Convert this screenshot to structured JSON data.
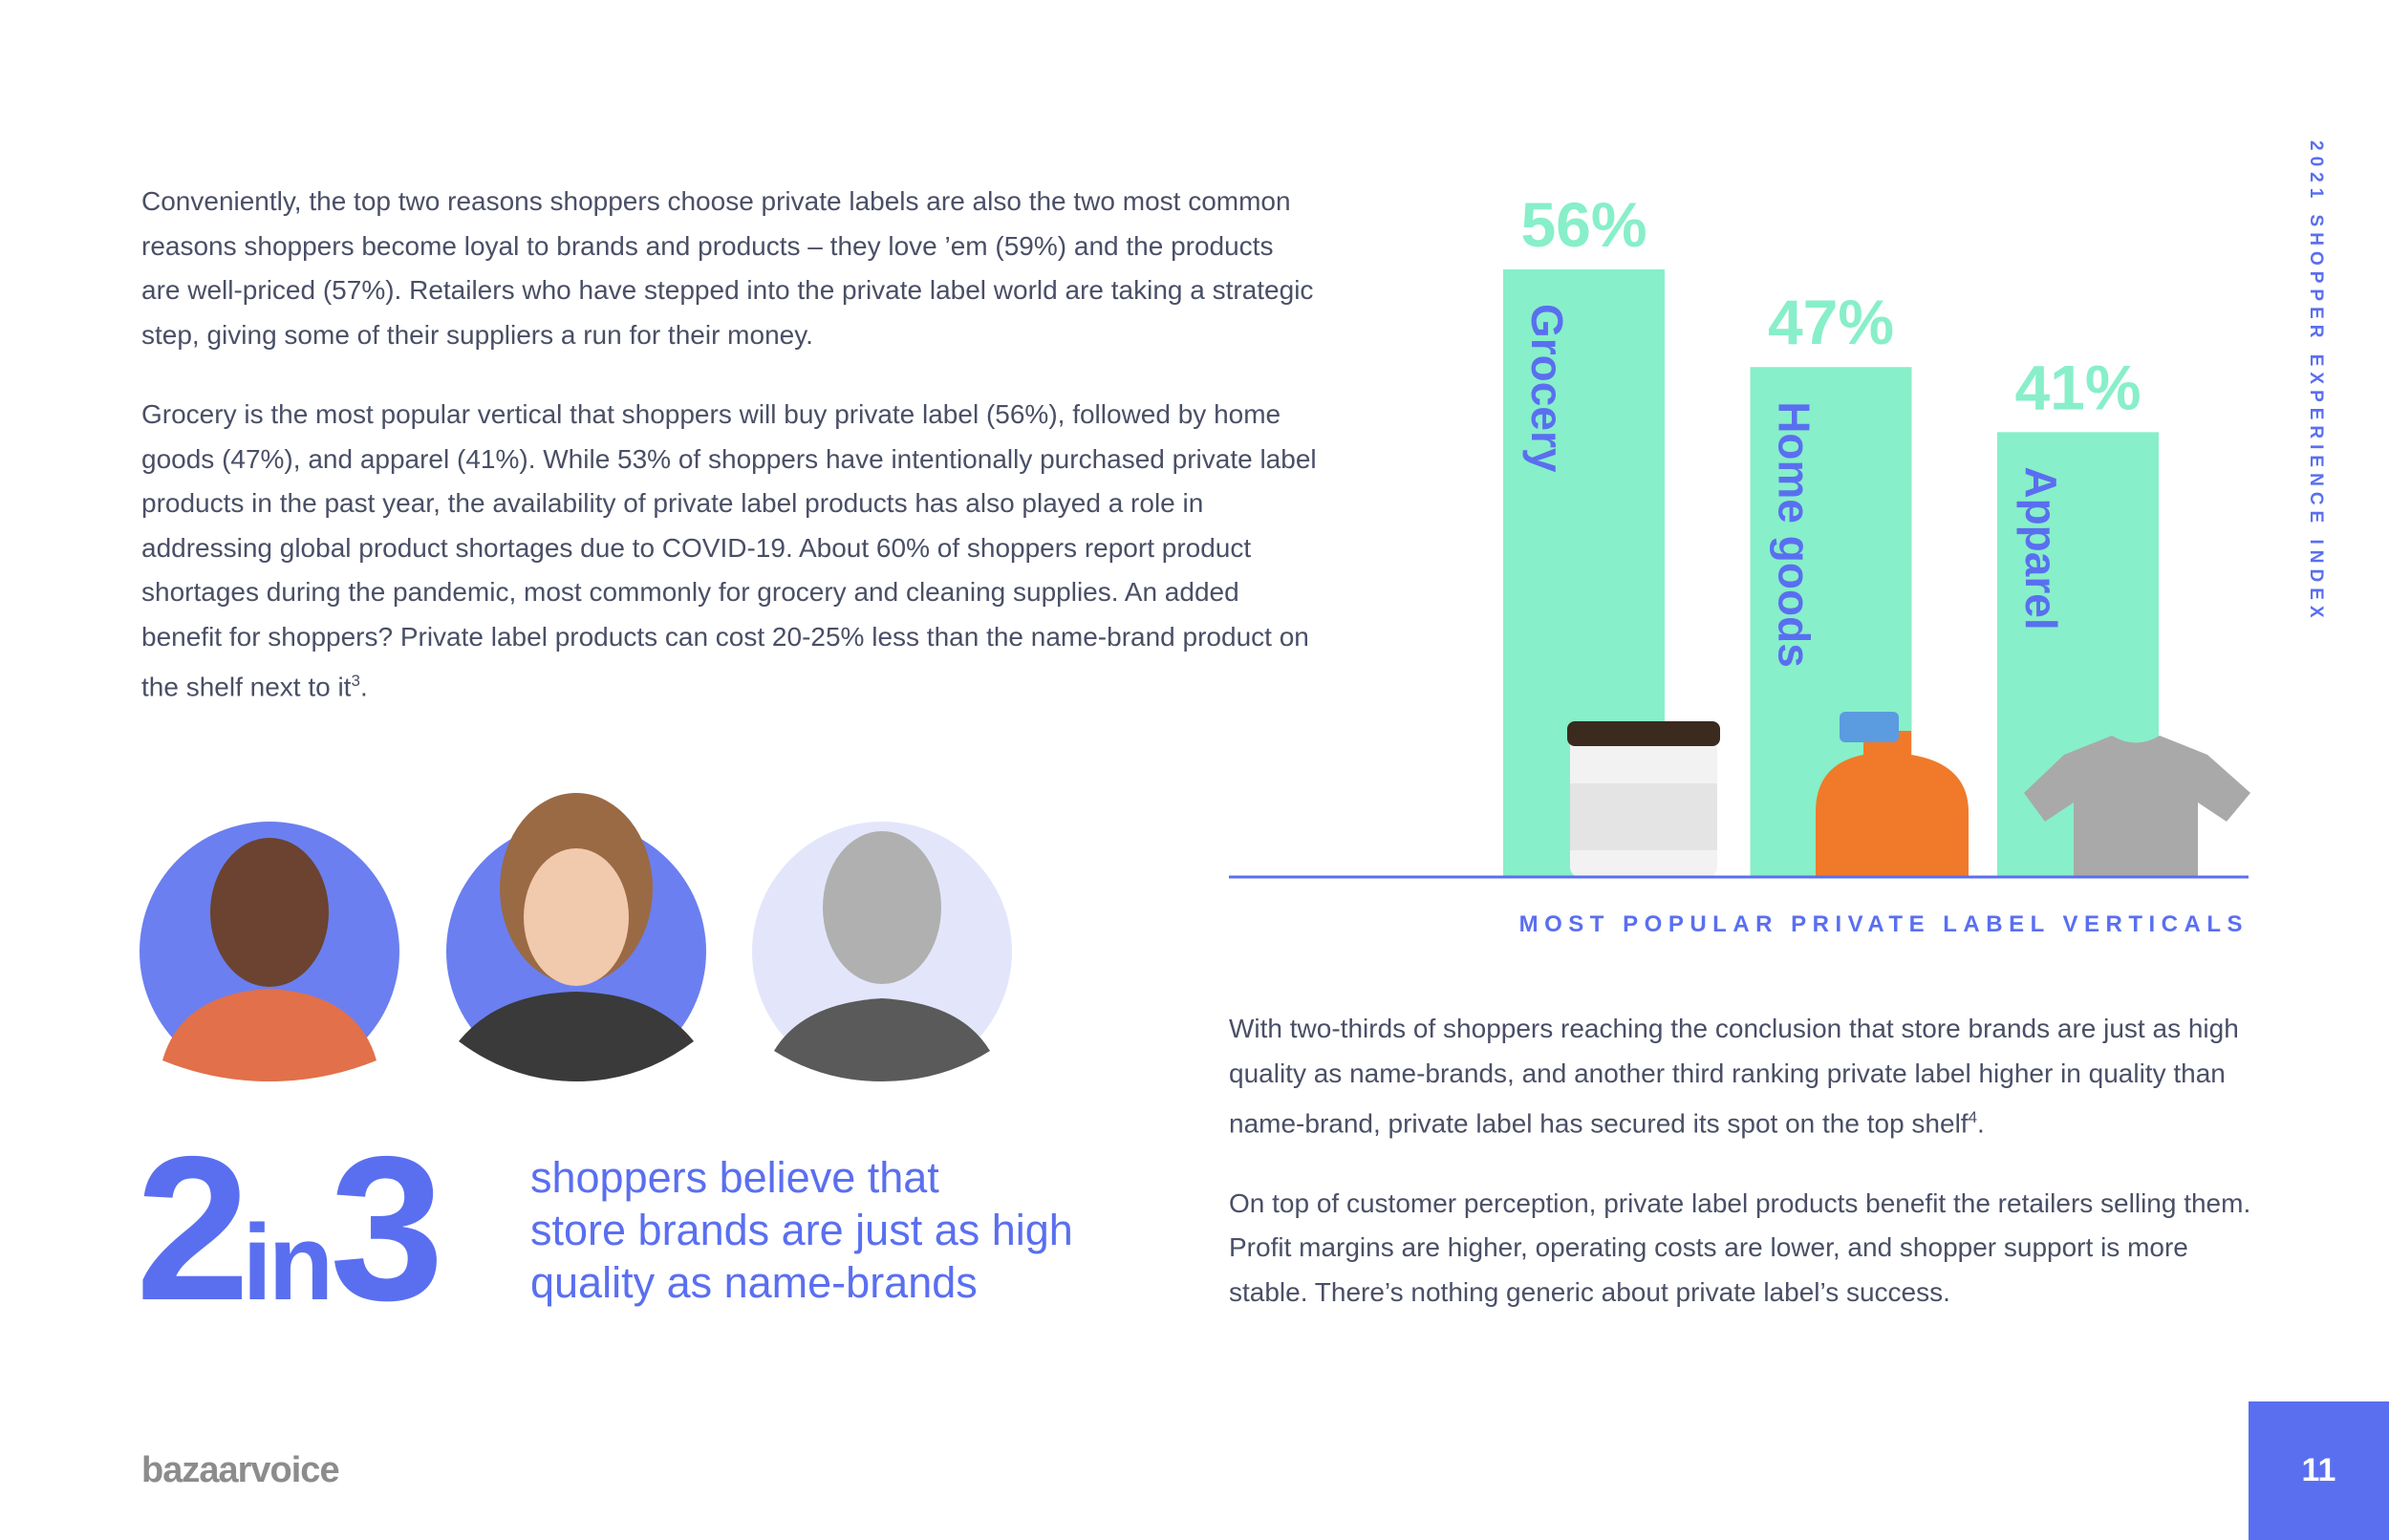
{
  "side_label": "2021 SHOPPER EXPERIENCE INDEX",
  "intro": {
    "paragraphs": [
      {
        "text": "Conveniently, the top two reasons shoppers choose private labels are also the two most common reasons shoppers become loyal to brands and products – they love ’em (59%) and the products are well-priced (57%). Retailers who have stepped into the private label world are taking a strategic step, giving some of their suppliers a run for their money."
      },
      {
        "text": "Grocery is the most popular vertical that shoppers will buy private label (56%), followed by home goods (47%), and apparel (41%). While 53% of shoppers have intentionally purchased private label products in the past year, the availability of private label products has also played a role in addressing global product shortages due to COVID-19. About 60% of shoppers report product shortages during the pandemic, most commonly for grocery and cleaning supplies. An added benefit for shoppers? Private label products can cost 20-25% less than the name-brand product on the shelf next to it",
        "footnote": "3",
        "tail": "."
      }
    ]
  },
  "stat": {
    "number1": "2",
    "word": "in",
    "number2": "3",
    "caption": [
      "shoppers believe that",
      "store brands are just as high",
      "quality as name-brands"
    ]
  },
  "chart_data": {
    "type": "bar",
    "title": "MOST POPULAR PRIVATE LABEL VERTICALS",
    "categories": [
      "Grocery",
      "Home goods",
      "Apparel"
    ],
    "values": [
      56,
      47,
      41
    ],
    "value_labels": [
      "56%",
      "47%",
      "41%"
    ],
    "color": "#87efc9",
    "label_color": "#5a6ff0"
  },
  "closing": {
    "paragraphs": [
      {
        "text": "With two-thirds of shoppers reaching the conclusion that store brands are just as high quality as name-brands, and another third ranking private label higher in quality than name-brand, private label has secured its spot on the top shelf",
        "footnote": "4",
        "tail": "."
      },
      {
        "text": "On top of customer perception, private label products benefit the retailers selling them. Profit margins are higher, operating costs are lower, and shopper support is more stable. There’s nothing generic about private label’s success."
      }
    ]
  },
  "footer": {
    "logo": "bazaarvoice",
    "page_number": "11"
  }
}
